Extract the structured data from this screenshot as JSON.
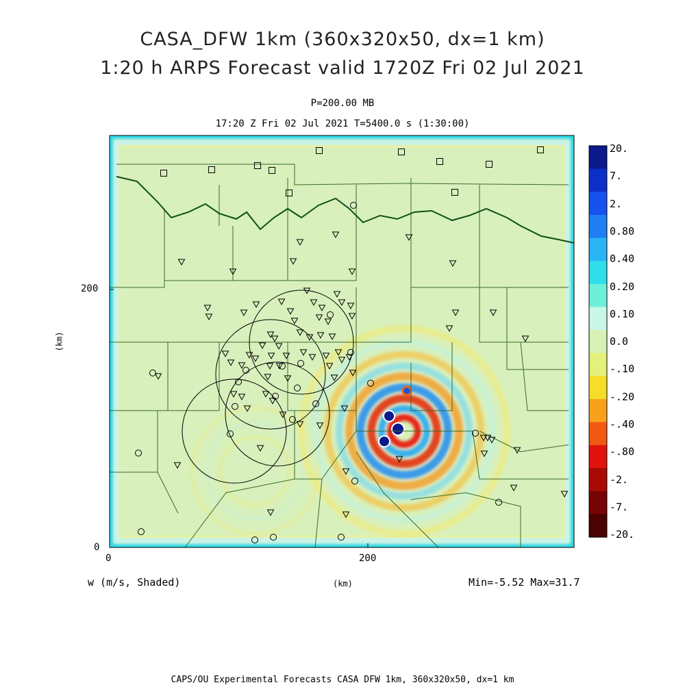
{
  "header": {
    "title_line1": "CASA_DFW 1km (360x320x50, dx=1 km)",
    "title_line2": "1:20 h ARPS Forecast valid 1720Z Fri 02 Jul 2021",
    "pressure": "P=200.00 MB",
    "time_info": "17:20 Z Fri 02 Jul 2021    T=5400.0 s (1:30:00)"
  },
  "axes": {
    "y_ticks": [
      "0",
      "200"
    ],
    "x_ticks": [
      "0",
      "200"
    ],
    "y_label": "(km)",
    "x_label": "(km)"
  },
  "footer": {
    "field_label": "w (m/s, Shaded)",
    "minmax": "Min=-5.52  Max=31.7",
    "credit": "CAPS/OU Experimental Forecasts  CASA DFW 1km, 360x320x50, dx=1 km"
  },
  "colorbar": {
    "levels": [
      "20.",
      "7.",
      "2.",
      "0.80",
      "0.40",
      "0.20",
      "0.10",
      "0.0",
      "-.10",
      "-.20",
      "-.40",
      "-.80",
      "-2.",
      "-7.",
      "-20."
    ],
    "colors": [
      "#0a1a8c",
      "#0c2fc8",
      "#1552ee",
      "#1f7ff2",
      "#28b4f5",
      "#30ddec",
      "#6ef0d8",
      "#c8f7e8",
      "#d7f2b4",
      "#e3f07a",
      "#f5dd28",
      "#f7a21a",
      "#f25a14",
      "#e0140a",
      "#aa0a06",
      "#760404",
      "#4a0202"
    ]
  },
  "map_colors": {
    "background": "#d8f0bc",
    "border_halo": "#2fd8e8",
    "county_lines": "#3a6a2a",
    "state_line": "#0c4f17",
    "markers": "#000000"
  }
}
